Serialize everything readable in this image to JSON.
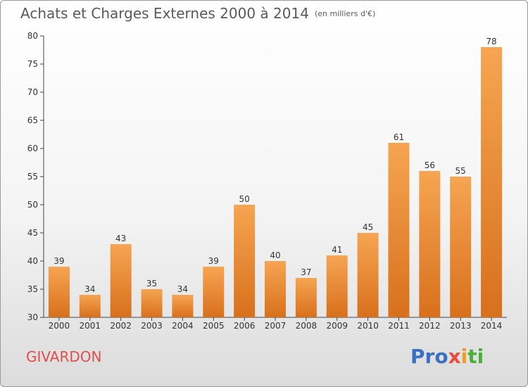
{
  "header": {
    "title": "Achats et Charges Externes 2000 à 2014",
    "unit": "(en milliers d'€)"
  },
  "footer": {
    "place": "GIVARDON",
    "logo": [
      "Pro",
      "x",
      "i",
      "ti"
    ]
  },
  "colors": {
    "bar_light": "#f6a552",
    "bar_dark": "#d8701c",
    "axis": "#444444",
    "place": "#e04d4d"
  },
  "chart_data": {
    "type": "bar",
    "title": "Achats et Charges Externes 2000 à 2014",
    "subtitle": "(en milliers d'€)",
    "categories": [
      "2000",
      "2001",
      "2002",
      "2003",
      "2004",
      "2005",
      "2006",
      "2007",
      "2008",
      "2009",
      "2010",
      "2011",
      "2012",
      "2013",
      "2014"
    ],
    "values": [
      39,
      34,
      43,
      35,
      34,
      39,
      50,
      40,
      37,
      41,
      45,
      61,
      56,
      55,
      78
    ],
    "ylim": [
      30,
      80
    ],
    "yticks": [
      30,
      35,
      40,
      45,
      50,
      55,
      60,
      65,
      70,
      75,
      80
    ],
    "data_labels": true,
    "grid": false
  }
}
